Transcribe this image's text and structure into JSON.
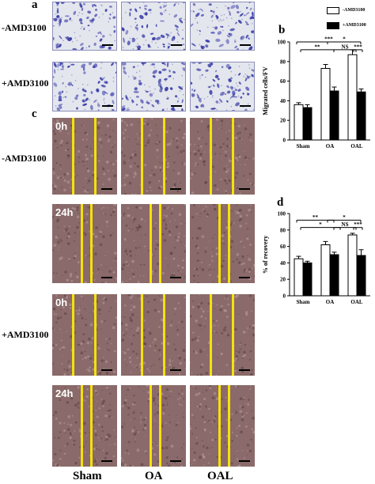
{
  "panels": {
    "a": "a",
    "b": "b",
    "c": "c",
    "d": "d"
  },
  "rows": {
    "a_top": "-AMD3100",
    "a_bottom": "+AMD3100",
    "c_top": "-AMD3100",
    "c_bottom": "+AMD3100"
  },
  "times": [
    "0h",
    "24h",
    "0h",
    "24h"
  ],
  "columns": [
    "Sham",
    "OA",
    "OAL"
  ],
  "legend": {
    "minus": "-AMD3100",
    "plus": "+AMD3100"
  },
  "colors": {
    "white_bar": "#ffffff",
    "black_bar": "#000000",
    "stain": "#3b3fa8",
    "tissue": "#8a6a6a",
    "scratch_line": "#f5e10a"
  },
  "chart_data": [
    {
      "type": "bar",
      "ylabel": "Migrated cells/FV",
      "ylim": [
        0,
        100
      ],
      "yticks": [
        0,
        20,
        40,
        60,
        80,
        100
      ],
      "categories": [
        "Sham",
        "OA",
        "OAL"
      ],
      "series": [
        {
          "name": "-AMD3100",
          "values": [
            36,
            73,
            87
          ],
          "errors": [
            2,
            4,
            5
          ]
        },
        {
          "name": "+AMD3100",
          "values": [
            33,
            50,
            49
          ],
          "errors": [
            3,
            4,
            3
          ]
        }
      ],
      "annotations": [
        "***",
        "**",
        "*",
        "NS",
        "***"
      ]
    },
    {
      "type": "bar",
      "ylabel": "% of recovery",
      "ylim": [
        0,
        100
      ],
      "yticks": [
        0,
        20,
        40,
        60,
        80,
        100
      ],
      "categories": [
        "Sham",
        "OA",
        "OAL"
      ],
      "series": [
        {
          "name": "-AMD3100",
          "values": [
            45,
            62,
            74
          ],
          "errors": [
            3,
            4,
            2
          ]
        },
        {
          "name": "+AMD3100",
          "values": [
            40,
            50,
            49
          ],
          "errors": [
            2,
            3,
            7
          ]
        }
      ],
      "annotations": [
        "**",
        "*",
        "*",
        "NS",
        "***"
      ]
    }
  ]
}
